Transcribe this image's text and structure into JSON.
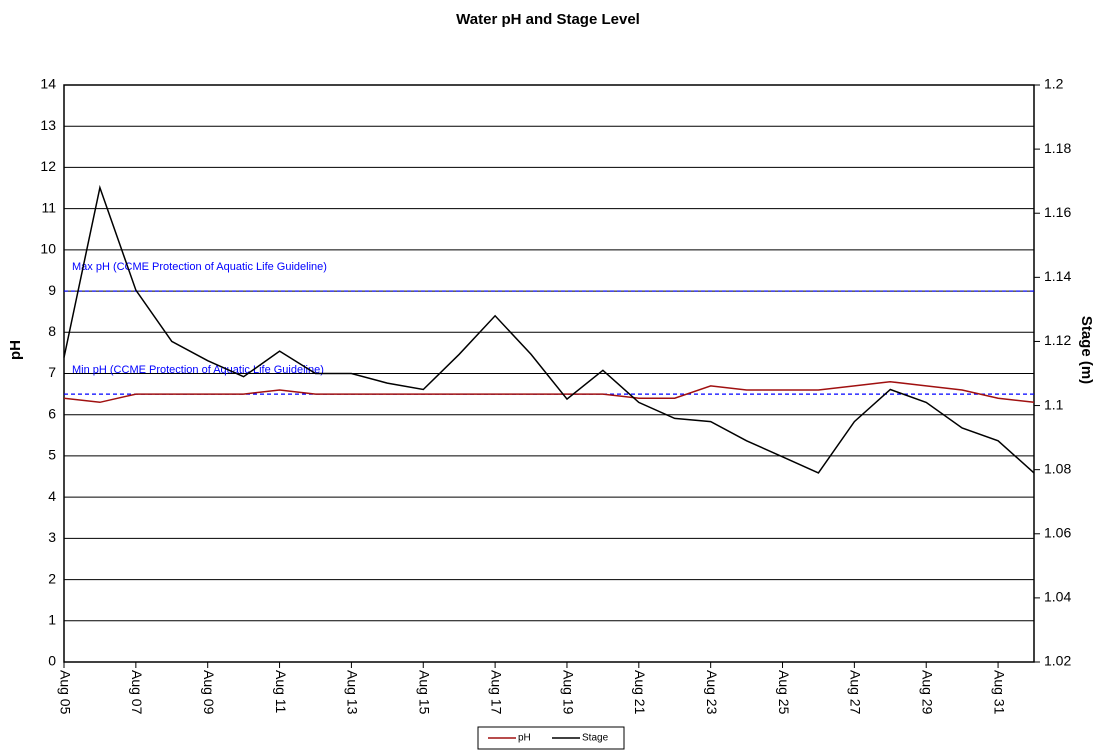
{
  "chart_data": {
    "type": "line",
    "title": "Water pH and Stage Level",
    "y_label": "pH",
    "y2_label": "Stage (m)",
    "x": [
      "Aug 05",
      "Aug 06",
      "Aug 07",
      "Aug 08",
      "Aug 09",
      "Aug 10",
      "Aug 11",
      "Aug 12",
      "Aug 13",
      "Aug 14",
      "Aug 15",
      "Aug 16",
      "Aug 17",
      "Aug 18",
      "Aug 19",
      "Aug 20",
      "Aug 21",
      "Aug 22",
      "Aug 23",
      "Aug 24",
      "Aug 25",
      "Aug 26",
      "Aug 27",
      "Aug 28",
      "Aug 29",
      "Aug 30",
      "Aug 31",
      "Sep 01"
    ],
    "xlim": [
      "Aug 05",
      "Sep 01"
    ],
    "xticks": [
      "Aug 05",
      "Aug 07",
      "Aug 09",
      "Aug 11",
      "Aug 13",
      "Aug 15",
      "Aug 17",
      "Aug 19",
      "Aug 21",
      "Aug 23",
      "Aug 25",
      "Aug 27",
      "Aug 29",
      "Aug 31"
    ],
    "ylim": [
      0,
      14
    ],
    "yticks": [
      0,
      1,
      2,
      3,
      4,
      5,
      6,
      7,
      8,
      9,
      10,
      11,
      12,
      13,
      14
    ],
    "y2lim": [
      1.02,
      1.2
    ],
    "y2ticks": [
      1.02,
      1.04,
      1.06,
      1.08,
      1.1,
      1.12,
      1.14,
      1.16,
      1.18,
      1.2
    ],
    "grid": true,
    "series": [
      {
        "name": "pH",
        "color": "#a01010",
        "values": [
          6.4,
          6.3,
          6.5,
          6.5,
          6.5,
          6.5,
          6.6,
          6.5,
          6.5,
          6.5,
          6.5,
          6.5,
          6.5,
          6.5,
          6.5,
          6.5,
          6.4,
          6.4,
          6.7,
          6.6,
          6.6,
          6.6,
          6.7,
          6.8,
          6.7,
          6.6,
          6.4,
          6.3
        ]
      },
      {
        "name": "Stage",
        "color": "#000000",
        "axis": "y2",
        "values": [
          1.115,
          1.168,
          1.136,
          1.12,
          1.114,
          1.109,
          1.117,
          1.11,
          1.11,
          1.107,
          1.105,
          1.116,
          1.128,
          1.116,
          1.102,
          1.111,
          1.101,
          1.096,
          1.095,
          1.089,
          1.084,
          1.079,
          1.095,
          1.105,
          1.101,
          1.093,
          1.089,
          1.079
        ]
      }
    ],
    "reference_lines": [
      {
        "value": 9,
        "label": "Max pH (CCME Protection of Aquatic Life Guideline)",
        "color": "#0000ff"
      },
      {
        "value": 6.5,
        "label": "Min pH (CCME Protection of Aquatic Life Guideline)",
        "color": "#0000ff"
      }
    ]
  }
}
